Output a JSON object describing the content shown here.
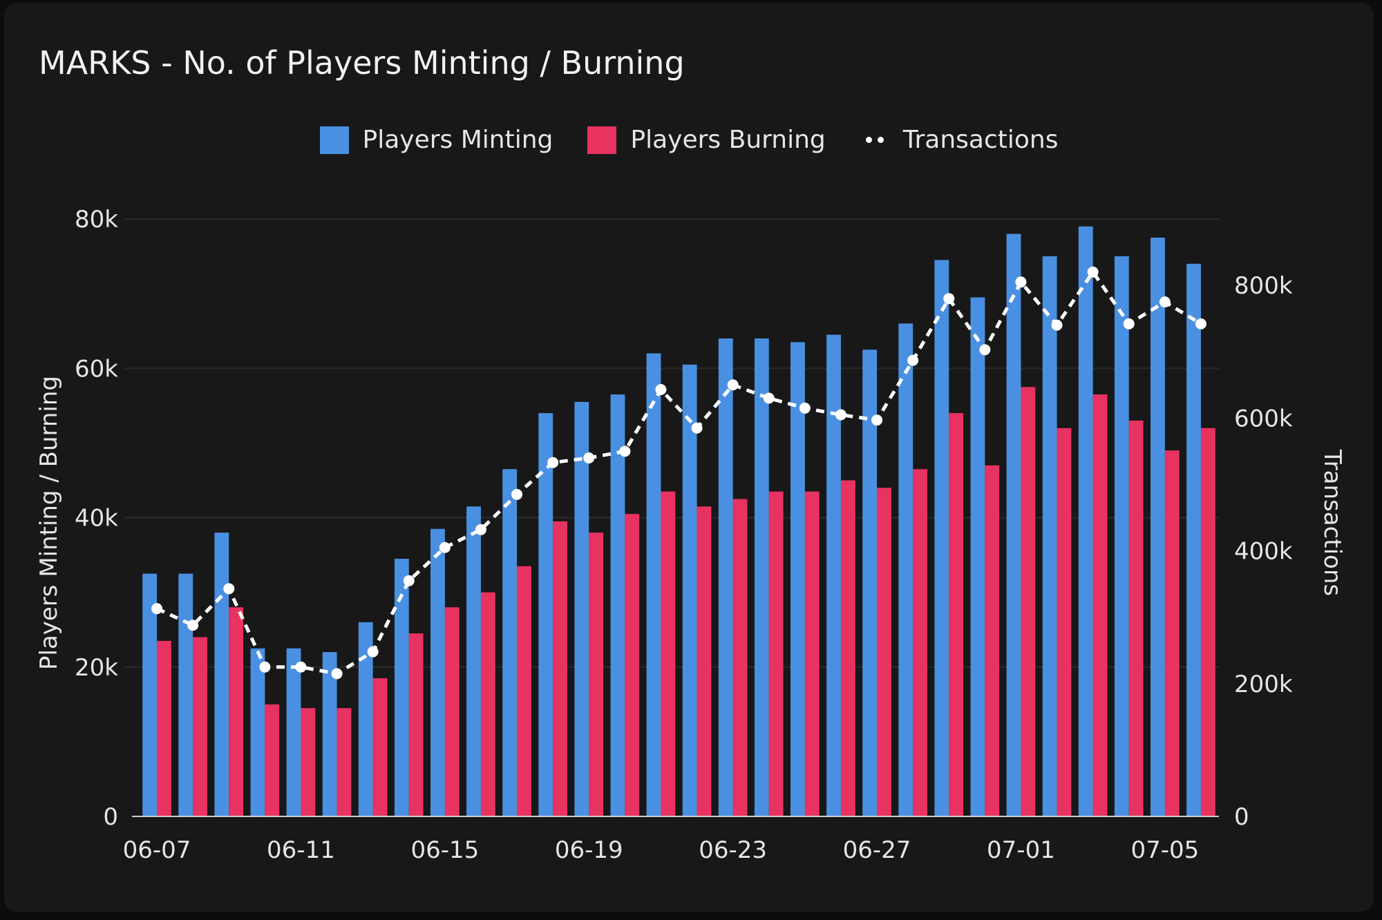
{
  "chart_data": {
    "type": "bar",
    "title": "MARKS - No. of Players Minting / Burning",
    "ylabel": "Players Minting / Burning",
    "y2label": "Transactions",
    "ylim": [
      0,
      80000
    ],
    "y2lim": [
      0,
      900000
    ],
    "yticks": [
      "0",
      "20k",
      "40k",
      "60k",
      "80k"
    ],
    "y2ticks": [
      "0",
      "200k",
      "400k",
      "600k",
      "800k"
    ],
    "legend_position": "top-center",
    "grid": true,
    "colors": {
      "minting": "#4a90e2",
      "burning": "#e8325f",
      "transactions": "#ffffff",
      "background": "#181818"
    },
    "categories": [
      "06-07",
      "06-08",
      "06-09",
      "06-10",
      "06-11",
      "06-12",
      "06-13",
      "06-14",
      "06-15",
      "06-16",
      "06-17",
      "06-18",
      "06-19",
      "06-20",
      "06-21",
      "06-22",
      "06-23",
      "06-24",
      "06-25",
      "06-26",
      "06-27",
      "06-28",
      "06-29",
      "06-30",
      "07-01",
      "07-02",
      "07-03",
      "07-04",
      "07-05",
      "07-06"
    ],
    "xtick_labels": [
      "06-07",
      "06-11",
      "06-15",
      "06-19",
      "06-23",
      "06-27",
      "07-01",
      "07-05"
    ],
    "series": [
      {
        "name": "Players Minting",
        "type": "bar",
        "axis": "left",
        "values": [
          32500,
          32500,
          38000,
          22500,
          22500,
          22000,
          26000,
          34500,
          38500,
          41500,
          46500,
          54000,
          55500,
          56500,
          62000,
          60500,
          64000,
          64000,
          63500,
          64500,
          62500,
          66000,
          74500,
          69500,
          78000,
          75000,
          79000,
          75000,
          77500,
          74000
        ]
      },
      {
        "name": "Players Burning",
        "type": "bar",
        "axis": "left",
        "values": [
          23500,
          24000,
          28000,
          15000,
          14500,
          14500,
          18500,
          24500,
          28000,
          30000,
          33500,
          39500,
          38000,
          40500,
          43500,
          41500,
          42500,
          43500,
          43500,
          45000,
          44000,
          46500,
          54000,
          47000,
          57500,
          52000,
          56500,
          53000,
          49000,
          52000
        ]
      },
      {
        "name": "Transactions",
        "type": "line",
        "axis": "right",
        "values": [
          313000,
          288000,
          343000,
          225000,
          225000,
          215000,
          248000,
          355000,
          405000,
          432000,
          485000,
          533000,
          540000,
          550000,
          643000,
          585000,
          650000,
          630000,
          615000,
          605000,
          597000,
          687000,
          780000,
          703000,
          805000,
          740000,
          820000,
          742000,
          775000,
          742000
        ]
      }
    ]
  }
}
